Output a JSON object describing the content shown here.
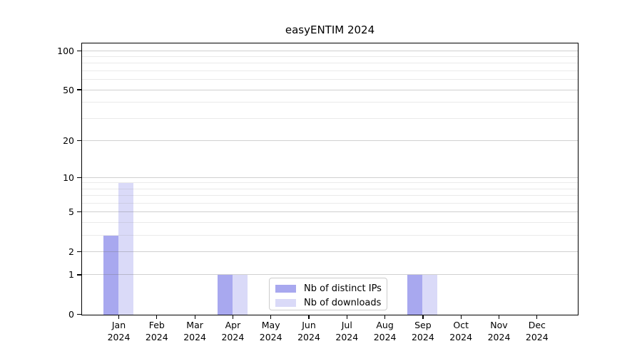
{
  "title": "easyENTIM 2024",
  "chart_data": {
    "type": "bar",
    "title": "easyENTIM 2024",
    "year_label": "2024",
    "categories": [
      "Jan",
      "Feb",
      "Mar",
      "Apr",
      "May",
      "Jun",
      "Jul",
      "Aug",
      "Sep",
      "Oct",
      "Nov",
      "Dec"
    ],
    "series": [
      {
        "name": "Nb of distinct IPs",
        "color": "#a8a8ef",
        "values": [
          3,
          0,
          0,
          1,
          0,
          0,
          0,
          0,
          1,
          0,
          0,
          0
        ]
      },
      {
        "name": "Nb of downloads",
        "color": "#dadaf8",
        "values": [
          9,
          0,
          0,
          1,
          0,
          0,
          0,
          0,
          1,
          0,
          0,
          0
        ]
      }
    ],
    "xlabel": "",
    "ylabel": "",
    "yscale": "log1p",
    "ylim": [
      0,
      113
    ],
    "y_ticks": [
      0,
      1,
      2,
      5,
      10,
      20,
      50,
      100
    ],
    "y_minor_ticks": [
      3,
      4,
      6,
      7,
      8,
      9,
      30,
      40,
      60,
      70,
      80,
      90
    ],
    "grid": true,
    "legend_position": "inside-bottom-center"
  },
  "legend": {
    "items": [
      {
        "label": "Nb of distinct IPs",
        "color": "#a8a8ef"
      },
      {
        "label": "Nb of downloads",
        "color": "#dadaf8"
      }
    ]
  },
  "colors": {
    "background": "#ffffff",
    "axis": "#000000",
    "text": "#000000",
    "grid_major": "#d6d6d6",
    "grid_minor": "#e9e9e9",
    "legend_border": "#cccccc"
  }
}
